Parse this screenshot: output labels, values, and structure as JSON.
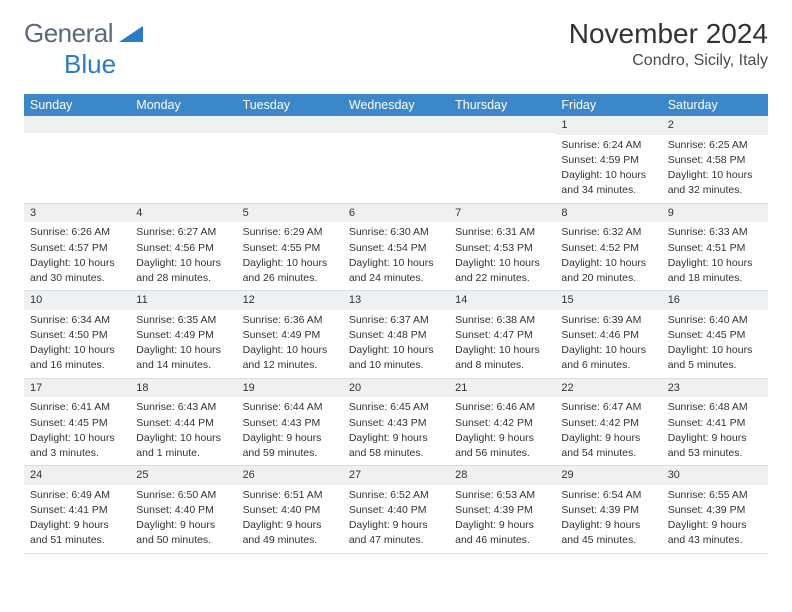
{
  "logo": {
    "part1": "General",
    "part2": "Blue"
  },
  "title": "November 2024",
  "location": "Condro, Sicily, Italy",
  "colors": {
    "header_bg": "#3b87c8",
    "daynum_bg": "#eef0f2",
    "text": "#333333",
    "logo_gray": "#5a6a7a",
    "logo_blue": "#2b7cc4"
  },
  "days_of_week": [
    "Sunday",
    "Monday",
    "Tuesday",
    "Wednesday",
    "Thursday",
    "Friday",
    "Saturday"
  ],
  "weeks": [
    [
      null,
      null,
      null,
      null,
      null,
      {
        "n": "1",
        "sr": "Sunrise: 6:24 AM",
        "ss": "Sunset: 4:59 PM",
        "dl1": "Daylight: 10 hours",
        "dl2": "and 34 minutes."
      },
      {
        "n": "2",
        "sr": "Sunrise: 6:25 AM",
        "ss": "Sunset: 4:58 PM",
        "dl1": "Daylight: 10 hours",
        "dl2": "and 32 minutes."
      }
    ],
    [
      {
        "n": "3",
        "sr": "Sunrise: 6:26 AM",
        "ss": "Sunset: 4:57 PM",
        "dl1": "Daylight: 10 hours",
        "dl2": "and 30 minutes."
      },
      {
        "n": "4",
        "sr": "Sunrise: 6:27 AM",
        "ss": "Sunset: 4:56 PM",
        "dl1": "Daylight: 10 hours",
        "dl2": "and 28 minutes."
      },
      {
        "n": "5",
        "sr": "Sunrise: 6:29 AM",
        "ss": "Sunset: 4:55 PM",
        "dl1": "Daylight: 10 hours",
        "dl2": "and 26 minutes."
      },
      {
        "n": "6",
        "sr": "Sunrise: 6:30 AM",
        "ss": "Sunset: 4:54 PM",
        "dl1": "Daylight: 10 hours",
        "dl2": "and 24 minutes."
      },
      {
        "n": "7",
        "sr": "Sunrise: 6:31 AM",
        "ss": "Sunset: 4:53 PM",
        "dl1": "Daylight: 10 hours",
        "dl2": "and 22 minutes."
      },
      {
        "n": "8",
        "sr": "Sunrise: 6:32 AM",
        "ss": "Sunset: 4:52 PM",
        "dl1": "Daylight: 10 hours",
        "dl2": "and 20 minutes."
      },
      {
        "n": "9",
        "sr": "Sunrise: 6:33 AM",
        "ss": "Sunset: 4:51 PM",
        "dl1": "Daylight: 10 hours",
        "dl2": "and 18 minutes."
      }
    ],
    [
      {
        "n": "10",
        "sr": "Sunrise: 6:34 AM",
        "ss": "Sunset: 4:50 PM",
        "dl1": "Daylight: 10 hours",
        "dl2": "and 16 minutes."
      },
      {
        "n": "11",
        "sr": "Sunrise: 6:35 AM",
        "ss": "Sunset: 4:49 PM",
        "dl1": "Daylight: 10 hours",
        "dl2": "and 14 minutes."
      },
      {
        "n": "12",
        "sr": "Sunrise: 6:36 AM",
        "ss": "Sunset: 4:49 PM",
        "dl1": "Daylight: 10 hours",
        "dl2": "and 12 minutes."
      },
      {
        "n": "13",
        "sr": "Sunrise: 6:37 AM",
        "ss": "Sunset: 4:48 PM",
        "dl1": "Daylight: 10 hours",
        "dl2": "and 10 minutes."
      },
      {
        "n": "14",
        "sr": "Sunrise: 6:38 AM",
        "ss": "Sunset: 4:47 PM",
        "dl1": "Daylight: 10 hours",
        "dl2": "and 8 minutes."
      },
      {
        "n": "15",
        "sr": "Sunrise: 6:39 AM",
        "ss": "Sunset: 4:46 PM",
        "dl1": "Daylight: 10 hours",
        "dl2": "and 6 minutes."
      },
      {
        "n": "16",
        "sr": "Sunrise: 6:40 AM",
        "ss": "Sunset: 4:45 PM",
        "dl1": "Daylight: 10 hours",
        "dl2": "and 5 minutes."
      }
    ],
    [
      {
        "n": "17",
        "sr": "Sunrise: 6:41 AM",
        "ss": "Sunset: 4:45 PM",
        "dl1": "Daylight: 10 hours",
        "dl2": "and 3 minutes."
      },
      {
        "n": "18",
        "sr": "Sunrise: 6:43 AM",
        "ss": "Sunset: 4:44 PM",
        "dl1": "Daylight: 10 hours",
        "dl2": "and 1 minute."
      },
      {
        "n": "19",
        "sr": "Sunrise: 6:44 AM",
        "ss": "Sunset: 4:43 PM",
        "dl1": "Daylight: 9 hours",
        "dl2": "and 59 minutes."
      },
      {
        "n": "20",
        "sr": "Sunrise: 6:45 AM",
        "ss": "Sunset: 4:43 PM",
        "dl1": "Daylight: 9 hours",
        "dl2": "and 58 minutes."
      },
      {
        "n": "21",
        "sr": "Sunrise: 6:46 AM",
        "ss": "Sunset: 4:42 PM",
        "dl1": "Daylight: 9 hours",
        "dl2": "and 56 minutes."
      },
      {
        "n": "22",
        "sr": "Sunrise: 6:47 AM",
        "ss": "Sunset: 4:42 PM",
        "dl1": "Daylight: 9 hours",
        "dl2": "and 54 minutes."
      },
      {
        "n": "23",
        "sr": "Sunrise: 6:48 AM",
        "ss": "Sunset: 4:41 PM",
        "dl1": "Daylight: 9 hours",
        "dl2": "and 53 minutes."
      }
    ],
    [
      {
        "n": "24",
        "sr": "Sunrise: 6:49 AM",
        "ss": "Sunset: 4:41 PM",
        "dl1": "Daylight: 9 hours",
        "dl2": "and 51 minutes."
      },
      {
        "n": "25",
        "sr": "Sunrise: 6:50 AM",
        "ss": "Sunset: 4:40 PM",
        "dl1": "Daylight: 9 hours",
        "dl2": "and 50 minutes."
      },
      {
        "n": "26",
        "sr": "Sunrise: 6:51 AM",
        "ss": "Sunset: 4:40 PM",
        "dl1": "Daylight: 9 hours",
        "dl2": "and 49 minutes."
      },
      {
        "n": "27",
        "sr": "Sunrise: 6:52 AM",
        "ss": "Sunset: 4:40 PM",
        "dl1": "Daylight: 9 hours",
        "dl2": "and 47 minutes."
      },
      {
        "n": "28",
        "sr": "Sunrise: 6:53 AM",
        "ss": "Sunset: 4:39 PM",
        "dl1": "Daylight: 9 hours",
        "dl2": "and 46 minutes."
      },
      {
        "n": "29",
        "sr": "Sunrise: 6:54 AM",
        "ss": "Sunset: 4:39 PM",
        "dl1": "Daylight: 9 hours",
        "dl2": "and 45 minutes."
      },
      {
        "n": "30",
        "sr": "Sunrise: 6:55 AM",
        "ss": "Sunset: 4:39 PM",
        "dl1": "Daylight: 9 hours",
        "dl2": "and 43 minutes."
      }
    ]
  ]
}
